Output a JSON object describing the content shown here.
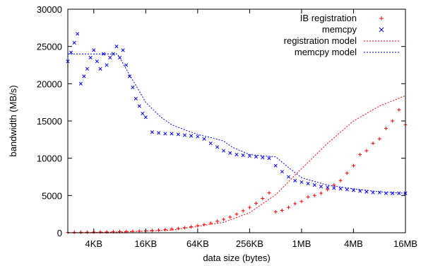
{
  "chart_data": {
    "type": "scatter",
    "xlabel": "data size (bytes)",
    "ylabel": "bandwidth (MB/s)",
    "x_scale": "log2",
    "x_tick_labels": [
      "4KB",
      "16KB",
      "64KB",
      "256KB",
      "1MB",
      "4MB",
      "16MB"
    ],
    "x_tick_values_kb": [
      4,
      16,
      64,
      256,
      1024,
      4096,
      16384
    ],
    "x_range_kb": [
      2,
      16384
    ],
    "ylim": [
      0,
      30000
    ],
    "y_ticks": [
      0,
      5000,
      10000,
      15000,
      20000,
      25000,
      30000
    ],
    "y_tick_labels": [
      "0",
      "5000",
      "10000",
      "15000",
      "20000",
      "25000",
      "30000"
    ],
    "grid": false,
    "legend_position": "top-right",
    "series": [
      {
        "name": "IB registration",
        "style": "points",
        "marker": "plus",
        "color": "#ff0000",
        "x_kb": [
          2,
          2.38,
          2.83,
          3.36,
          4,
          4.76,
          5.66,
          6.73,
          8,
          9.51,
          11.3,
          13.5,
          16,
          19.0,
          22.6,
          26.9,
          32,
          38.1,
          45.3,
          53.8,
          64,
          76.1,
          90.5,
          108,
          128,
          152,
          181,
          215,
          256,
          304,
          362,
          431,
          512,
          609,
          724,
          861,
          1024,
          1218,
          1448,
          1722,
          2048,
          2435,
          2896,
          3444,
          4096,
          4871,
          5793,
          6889,
          8192,
          9742,
          11585,
          13777,
          16384
        ],
        "y": [
          50,
          60,
          70,
          80,
          90,
          100,
          110,
          130,
          150,
          170,
          190,
          220,
          260,
          300,
          350,
          420,
          500,
          580,
          680,
          800,
          950,
          1100,
          1300,
          1550,
          1800,
          2100,
          2500,
          2950,
          3400,
          3950,
          4600,
          5350,
          2800,
          3000,
          3400,
          3900,
          4200,
          4800,
          5000,
          5300,
          5800,
          6400,
          7000,
          8000,
          9000,
          10500,
          11000,
          12000,
          12600,
          14000,
          15000,
          16500,
          14500
        ]
      },
      {
        "name": "memcpy",
        "style": "points",
        "marker": "x",
        "color": "#0000ff",
        "x_kb": [
          2,
          2.18,
          2.38,
          2.59,
          2.83,
          3.08,
          3.36,
          3.67,
          4,
          4.36,
          4.76,
          5.19,
          5.66,
          6.17,
          6.73,
          7.34,
          8,
          8.72,
          9.51,
          10.4,
          11.3,
          12.3,
          13.5,
          14.7,
          16,
          19.0,
          22.6,
          26.9,
          32,
          38.1,
          45.3,
          53.8,
          64,
          76.1,
          90.5,
          108,
          128,
          152,
          181,
          215,
          256,
          304,
          362,
          431,
          512,
          609,
          724,
          861,
          1024,
          1218,
          1448,
          1722,
          2048,
          2435,
          2896,
          3444,
          4096,
          4871,
          5793,
          6889,
          8192,
          9742,
          11585,
          13777,
          16384
        ],
        "y": [
          23000,
          24200,
          25500,
          26700,
          20000,
          21000,
          22000,
          23500,
          24500,
          23000,
          22000,
          24000,
          22500,
          23500,
          24000,
          25000,
          23500,
          24500,
          22500,
          21000,
          19500,
          18000,
          17000,
          16000,
          15500,
          13500,
          13400,
          13300,
          13300,
          13200,
          13100,
          13000,
          12900,
          12600,
          12000,
          11500,
          11000,
          10700,
          10500,
          10400,
          10300,
          10200,
          10100,
          10000,
          9000,
          8200,
          7500,
          7000,
          6800,
          6600,
          6400,
          6200,
          6100,
          6000,
          5900,
          5800,
          5700,
          5600,
          5500,
          5400,
          5400,
          5300,
          5300,
          5300,
          5300
        ]
      },
      {
        "name": "registration model",
        "style": "line",
        "dash": "dotted",
        "color": "#ff0000",
        "x_kb": [
          2,
          8,
          32,
          128,
          256,
          512,
          1024,
          2048,
          4096,
          8192,
          16384
        ],
        "y": [
          0,
          90,
          350,
          1400,
          2700,
          5100,
          8600,
          12000,
          15000,
          17000,
          18400
        ]
      },
      {
        "name": "memcpy model",
        "style": "line",
        "dash": "dotted",
        "color": "#0000ff",
        "x_kb": [
          2,
          4,
          6,
          7.5,
          8,
          10,
          12,
          16,
          24,
          32,
          48,
          64,
          96,
          128,
          160,
          256,
          384,
          512,
          768,
          1024,
          1536,
          2048,
          4096,
          8192,
          16384
        ],
        "y": [
          24000,
          24000,
          24000,
          24000,
          23500,
          21500,
          20000,
          17500,
          15500,
          14500,
          13700,
          13200,
          12700,
          12300,
          11500,
          10500,
          10300,
          10200,
          8500,
          7400,
          6800,
          6400,
          5900,
          5500,
          5300
        ]
      }
    ]
  }
}
